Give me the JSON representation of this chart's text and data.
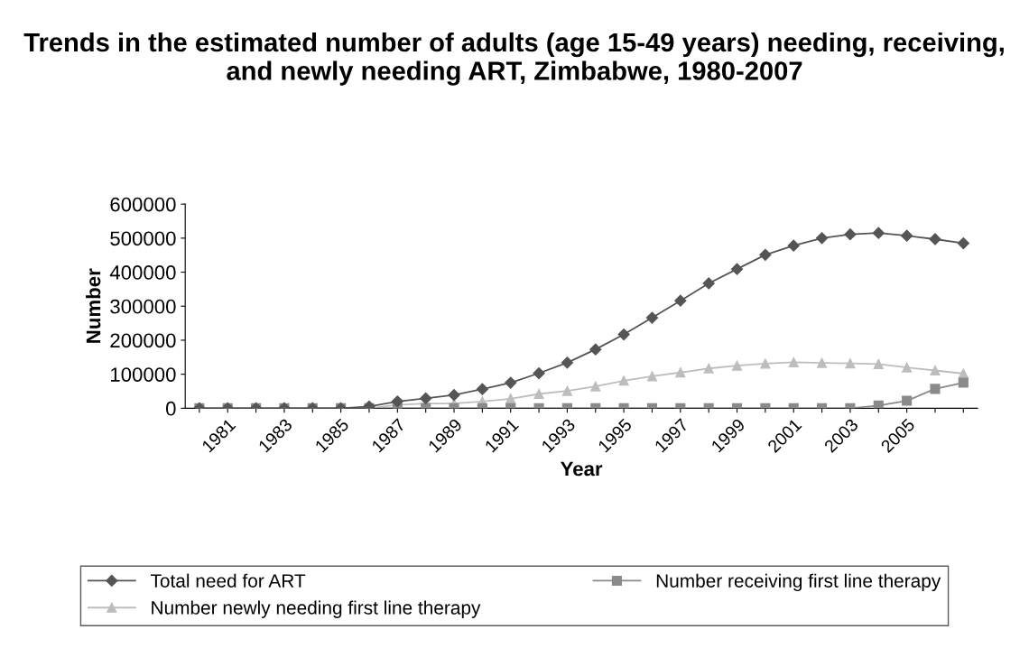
{
  "chart_data": {
    "type": "line",
    "title": "Trends in the estimated number of adults (age 15-49 years) needing, receiving, and newly needing ART, Zimbabwe, 1980-2007",
    "xlabel": "Year",
    "ylabel": "Number",
    "categories": [
      null,
      "1981",
      null,
      "1983",
      null,
      "1985",
      null,
      "1987",
      null,
      "1989",
      null,
      "1991",
      null,
      "1993",
      null,
      "1995",
      null,
      "1997",
      null,
      "1999",
      null,
      "2001",
      null,
      "2003",
      null,
      "2005",
      null,
      null
    ],
    "series": [
      {
        "name": "Total need for ART",
        "color": "#555555",
        "marker": "diamond",
        "values": [
          0,
          0,
          0,
          0,
          0,
          0,
          5000,
          20000,
          29000,
          39000,
          56000,
          75000,
          103000,
          134000,
          173000,
          217000,
          266000,
          316000,
          367000,
          409000,
          451000,
          478000,
          500000,
          511000,
          515000,
          507000,
          497000,
          485000
        ]
      },
      {
        "name": "Number receiving first line therapy",
        "color": "#8a8a8a",
        "marker": "square",
        "values": [
          0,
          0,
          0,
          0,
          0,
          0,
          0,
          0,
          0,
          0,
          0,
          0,
          0,
          0,
          0,
          0,
          0,
          0,
          0,
          0,
          0,
          0,
          0,
          0,
          8000,
          22000,
          57000,
          75000
        ]
      },
      {
        "name": "Number newly needing first line therapy",
        "color": "#bdbdbd",
        "marker": "triangle",
        "values": [
          0,
          0,
          0,
          0,
          0,
          0,
          0,
          10000,
          14000,
          14000,
          20000,
          28000,
          42000,
          51000,
          64000,
          81000,
          94000,
          105000,
          117000,
          125000,
          131000,
          135000,
          133000,
          132000,
          130000,
          120000,
          111000,
          102000
        ]
      }
    ],
    "ylim": [
      0,
      600000
    ],
    "yticks": [
      0,
      100000,
      200000,
      300000,
      400000,
      500000,
      600000
    ],
    "grid": false,
    "legend": "bottom",
    "line_style": "solid"
  }
}
